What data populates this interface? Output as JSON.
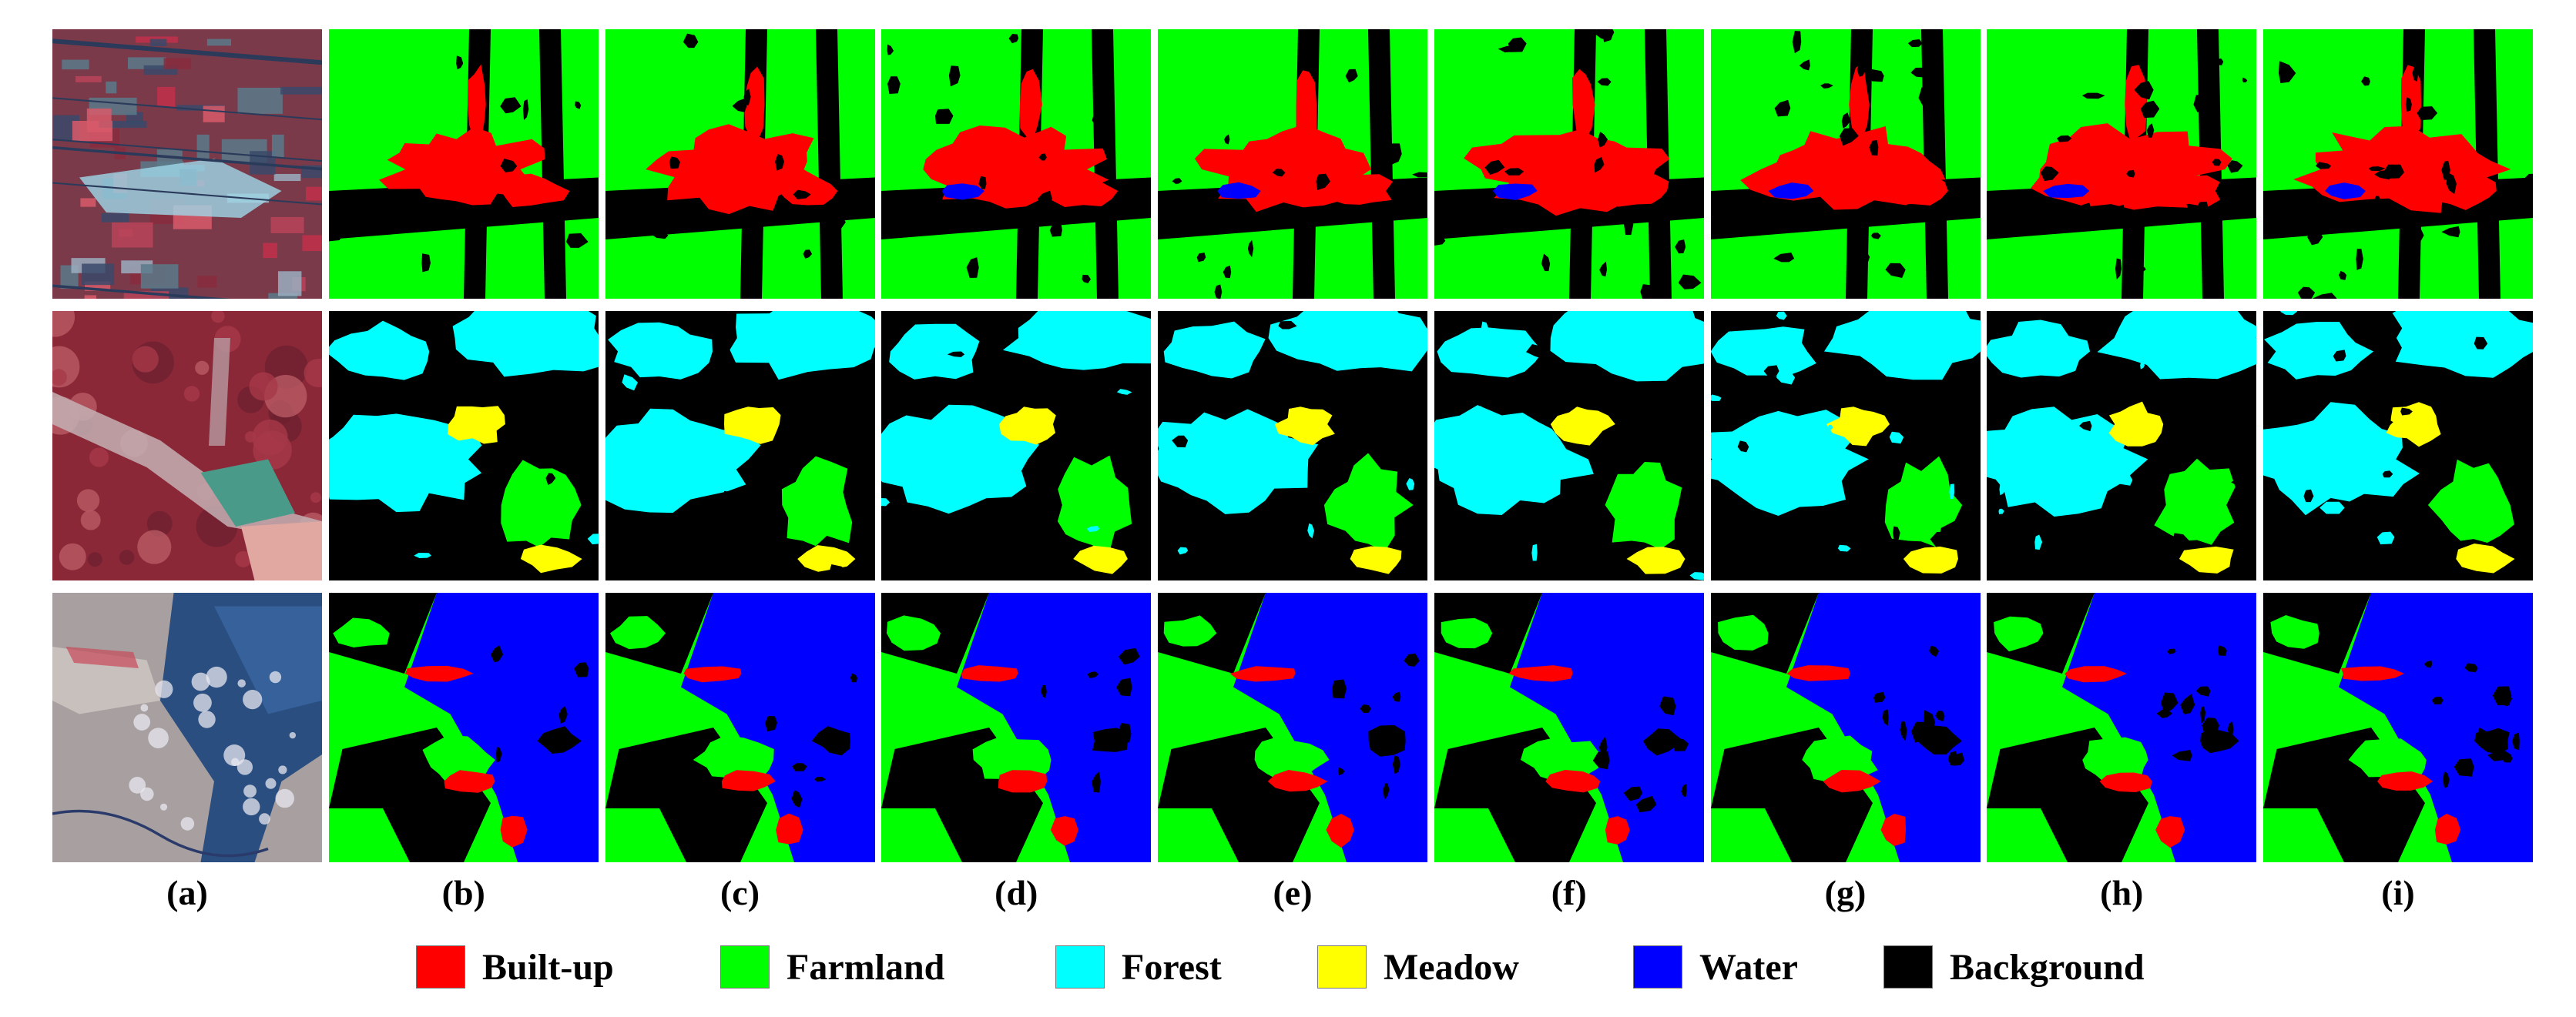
{
  "column_labels": [
    "(a)",
    "(b)",
    "(c)",
    "(d)",
    "(e)",
    "(f)",
    "(g)",
    "(h)",
    "(i)"
  ],
  "legend": [
    {
      "label": "Built-up",
      "color": "#ff0000"
    },
    {
      "label": "Farmland",
      "color": "#00ff00"
    },
    {
      "label": "Forest",
      "color": "#00ffff"
    },
    {
      "label": "Meadow",
      "color": "#ffff00"
    },
    {
      "label": "Water",
      "color": "#0000ff"
    },
    {
      "label": "Background",
      "color": "#000000"
    }
  ],
  "rows": [
    {
      "photo": "false-color satellite image of farmland and built-up area",
      "dominant_class": "Farmland"
    },
    {
      "photo": "false-color satellite image of forest, farmland and meadow",
      "dominant_class": "Forest"
    },
    {
      "photo": "satellite image of coastline with water",
      "dominant_class": "Water"
    }
  ]
}
